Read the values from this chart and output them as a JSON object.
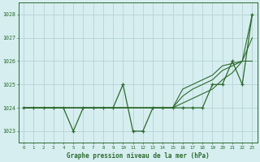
{
  "x": [
    0,
    1,
    2,
    3,
    4,
    5,
    6,
    7,
    8,
    9,
    10,
    11,
    12,
    13,
    14,
    15,
    16,
    17,
    18,
    19,
    20,
    21,
    22,
    23
  ],
  "y_main": [
    1024,
    1024,
    1024,
    1024,
    1024,
    1023,
    1024,
    1024,
    1024,
    1024,
    1025,
    1023,
    1023,
    1024,
    1024,
    1024,
    1024,
    1024,
    1024,
    1025,
    1025,
    1026,
    1025,
    1028
  ],
  "y_line1": [
    1024,
    1024,
    1024,
    1024,
    1024,
    1024,
    1024,
    1024,
    1024,
    1024,
    1024,
    1024,
    1024,
    1024,
    1024,
    1024,
    1024.2,
    1024.4,
    1024.6,
    1024.8,
    1025.2,
    1025.5,
    1026.0,
    1028.0
  ],
  "y_line2": [
    1024,
    1024,
    1024,
    1024,
    1024,
    1024,
    1024,
    1024,
    1024,
    1024,
    1024,
    1024,
    1024,
    1024,
    1024,
    1024,
    1024.5,
    1024.8,
    1025.0,
    1025.2,
    1025.6,
    1025.8,
    1026.0,
    1027.0
  ],
  "y_line3": [
    1024,
    1024,
    1024,
    1024,
    1024,
    1024,
    1024,
    1024,
    1024,
    1024,
    1024,
    1024,
    1024,
    1024,
    1024,
    1024,
    1024.8,
    1025.0,
    1025.2,
    1025.4,
    1025.8,
    1025.9,
    1026.0,
    1026.0
  ],
  "line_color": "#2d6a2d",
  "bg_color": "#d6eef0",
  "grid_color": "#b0cdd0",
  "xlabel": "Graphe pression niveau de la mer (hPa)",
  "ylim": [
    1022.5,
    1028.5
  ],
  "xlim": [
    -0.5,
    23.5
  ],
  "yticks": [
    1023,
    1024,
    1025,
    1026,
    1027,
    1028
  ],
  "xticks": [
    0,
    1,
    2,
    3,
    4,
    5,
    6,
    7,
    8,
    9,
    10,
    11,
    12,
    13,
    14,
    15,
    16,
    17,
    18,
    19,
    20,
    21,
    22,
    23
  ]
}
